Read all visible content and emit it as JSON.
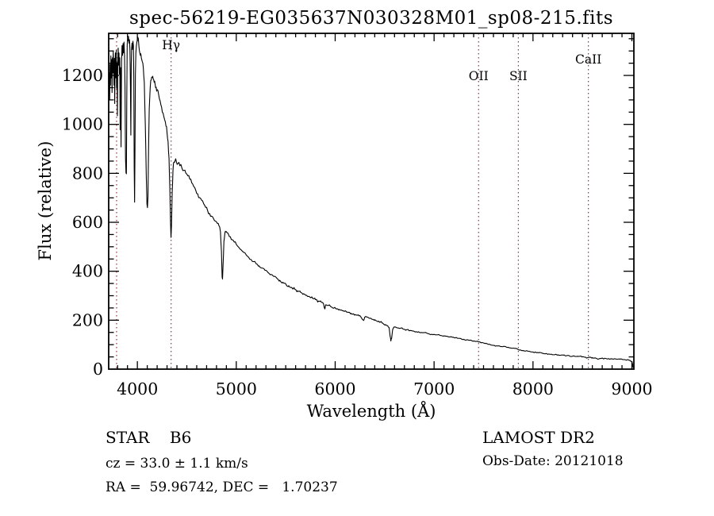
{
  "page": {
    "background": "#ffffff",
    "text_color": "#000000"
  },
  "chart_data": {
    "type": "line",
    "title": "spec-56219-EG035637N030328M01_sp08-215.fits",
    "xlabel": "Wavelength (Å)",
    "ylabel": "Flux (relative)",
    "xlim": [
      3710,
      9020
    ],
    "ylim": [
      0,
      1372
    ],
    "xticks": [
      4000,
      5000,
      6000,
      7000,
      8000,
      9000
    ],
    "xtick_minor_step": 100,
    "yticks": [
      0,
      200,
      400,
      600,
      800,
      1000,
      1200
    ],
    "ytick_minor_step": 50,
    "grid": false,
    "legend": "none",
    "axis_color": "#000000",
    "line_color": "#000000",
    "reference_line_color": "#993333",
    "reference_lines": [
      {
        "label": "",
        "wavelength": 3790,
        "label_row": "none"
      },
      {
        "label": "Hγ",
        "wavelength": 4341,
        "label_row": "high"
      },
      {
        "label": "OII",
        "wavelength": 7450,
        "label_row": "low"
      },
      {
        "label": "SII",
        "wavelength": 7852,
        "label_row": "low"
      },
      {
        "label": "CaII",
        "wavelength": 8560,
        "label_row": "mid"
      }
    ],
    "series": [
      {
        "name": "spectrum",
        "points": [
          [
            3712,
            1140
          ],
          [
            3716,
            1210
          ],
          [
            3720,
            1100
          ],
          [
            3724,
            1245
          ],
          [
            3728,
            1160
          ],
          [
            3732,
            1280
          ],
          [
            3736,
            1190
          ],
          [
            3740,
            1265
          ],
          [
            3744,
            1130
          ],
          [
            3748,
            1272
          ],
          [
            3752,
            1210
          ],
          [
            3756,
            1300
          ],
          [
            3760,
            1235
          ],
          [
            3764,
            1160
          ],
          [
            3768,
            1270
          ],
          [
            3771,
            1085
          ],
          [
            3774,
            1235
          ],
          [
            3778,
            1292
          ],
          [
            3782,
            1190
          ],
          [
            3786,
            1302
          ],
          [
            3790,
            1148
          ],
          [
            3794,
            1252
          ],
          [
            3798,
            1035
          ],
          [
            3802,
            1262
          ],
          [
            3806,
            1312
          ],
          [
            3810,
            1242
          ],
          [
            3814,
            1292
          ],
          [
            3818,
            1205
          ],
          [
            3822,
            1272
          ],
          [
            3826,
            978
          ],
          [
            3830,
            1232
          ],
          [
            3835,
            908
          ],
          [
            3840,
            1252
          ],
          [
            3845,
            1322
          ],
          [
            3850,
            1282
          ],
          [
            3855,
            1330
          ],
          [
            3860,
            1292
          ],
          [
            3865,
            1336
          ],
          [
            3870,
            1282
          ],
          [
            3875,
            1152
          ],
          [
            3880,
            862
          ],
          [
            3885,
            802
          ],
          [
            3889,
            798
          ],
          [
            3893,
            1102
          ],
          [
            3897,
            1322
          ],
          [
            3901,
            1355
          ],
          [
            3905,
            1342
          ],
          [
            3910,
            1360
          ],
          [
            3915,
            1332
          ],
          [
            3920,
            1346
          ],
          [
            3925,
            1302
          ],
          [
            3930,
            1152
          ],
          [
            3934,
            956
          ],
          [
            3938,
            1242
          ],
          [
            3942,
            1312
          ],
          [
            3946,
            1332
          ],
          [
            3950,
            1306
          ],
          [
            3955,
            1340
          ],
          [
            3960,
            1322
          ],
          [
            3964,
            1182
          ],
          [
            3968,
            822
          ],
          [
            3972,
            682
          ],
          [
            3976,
            902
          ],
          [
            3980,
            1202
          ],
          [
            3985,
            1292
          ],
          [
            3990,
            1322
          ],
          [
            3995,
            1336
          ],
          [
            4000,
            1346
          ],
          [
            4005,
            1356
          ],
          [
            4010,
            1350
          ],
          [
            4015,
            1322
          ],
          [
            4020,
            1302
          ],
          [
            4030,
            1282
          ],
          [
            4040,
            1272
          ],
          [
            4050,
            1256
          ],
          [
            4060,
            1232
          ],
          [
            4070,
            1172
          ],
          [
            4080,
            1002
          ],
          [
            4090,
            792
          ],
          [
            4097,
            674
          ],
          [
            4102,
            660
          ],
          [
            4107,
            702
          ],
          [
            4112,
            862
          ],
          [
            4120,
            1062
          ],
          [
            4130,
            1152
          ],
          [
            4140,
            1182
          ],
          [
            4150,
            1192
          ],
          [
            4160,
            1186
          ],
          [
            4170,
            1172
          ],
          [
            4180,
            1162
          ],
          [
            4190,
            1152
          ],
          [
            4200,
            1142
          ],
          [
            4215,
            1122
          ],
          [
            4230,
            1096
          ],
          [
            4245,
            1070
          ],
          [
            4260,
            1046
          ],
          [
            4275,
            1020
          ],
          [
            4290,
            992
          ],
          [
            4300,
            966
          ],
          [
            4310,
            932
          ],
          [
            4320,
            862
          ],
          [
            4328,
            742
          ],
          [
            4335,
            602
          ],
          [
            4340,
            538
          ],
          [
            4345,
            586
          ],
          [
            4352,
            722
          ],
          [
            4360,
            812
          ],
          [
            4370,
            846
          ],
          [
            4380,
            850
          ],
          [
            4395,
            846
          ],
          [
            4410,
            840
          ],
          [
            4430,
            831
          ],
          [
            4450,
            822
          ],
          [
            4470,
            812
          ],
          [
            4490,
            801
          ],
          [
            4510,
            790
          ],
          [
            4530,
            776
          ],
          [
            4550,
            761
          ],
          [
            4570,
            746
          ],
          [
            4590,
            731
          ],
          [
            4610,
            716
          ],
          [
            4630,
            701
          ],
          [
            4650,
            690
          ],
          [
            4670,
            676
          ],
          [
            4690,
            661
          ],
          [
            4710,
            648
          ],
          [
            4730,
            636
          ],
          [
            4750,
            625
          ],
          [
            4770,
            615
          ],
          [
            4790,
            605
          ],
          [
            4810,
            595
          ],
          [
            4825,
            586
          ],
          [
            4840,
            561
          ],
          [
            4850,
            481
          ],
          [
            4857,
            376
          ],
          [
            4861,
            368
          ],
          [
            4866,
            421
          ],
          [
            4875,
            521
          ],
          [
            4885,
            556
          ],
          [
            4895,
            561
          ],
          [
            4905,
            558
          ],
          [
            4920,
            552
          ],
          [
            4940,
            541
          ],
          [
            4960,
            529
          ],
          [
            4980,
            519
          ],
          [
            5000,
            510
          ],
          [
            5025,
            498
          ],
          [
            5050,
            487
          ],
          [
            5075,
            477
          ],
          [
            5100,
            467
          ],
          [
            5125,
            457
          ],
          [
            5150,
            448
          ],
          [
            5175,
            439
          ],
          [
            5200,
            431
          ],
          [
            5230,
            422
          ],
          [
            5260,
            413
          ],
          [
            5290,
            404
          ],
          [
            5320,
            395
          ],
          [
            5350,
            387
          ],
          [
            5380,
            379
          ],
          [
            5410,
            371
          ],
          [
            5440,
            363
          ],
          [
            5470,
            355
          ],
          [
            5500,
            348
          ],
          [
            5530,
            341
          ],
          [
            5560,
            334
          ],
          [
            5590,
            327
          ],
          [
            5620,
            320
          ],
          [
            5650,
            314
          ],
          [
            5680,
            308
          ],
          [
            5710,
            302
          ],
          [
            5740,
            296
          ],
          [
            5770,
            290
          ],
          [
            5800,
            284
          ],
          [
            5830,
            278
          ],
          [
            5860,
            273
          ],
          [
            5880,
            269
          ],
          [
            5890,
            251
          ],
          [
            5896,
            246
          ],
          [
            5905,
            263
          ],
          [
            5930,
            260
          ],
          [
            5960,
            255
          ],
          [
            6000,
            250
          ],
          [
            6040,
            244
          ],
          [
            6080,
            239
          ],
          [
            6120,
            233
          ],
          [
            6160,
            228
          ],
          [
            6200,
            223
          ],
          [
            6240,
            218
          ],
          [
            6262,
            212
          ],
          [
            6276,
            203
          ],
          [
            6288,
            199
          ],
          [
            6298,
            212
          ],
          [
            6320,
            213
          ],
          [
            6360,
            208
          ],
          [
            6400,
            202
          ],
          [
            6440,
            196
          ],
          [
            6480,
            188
          ],
          [
            6510,
            182
          ],
          [
            6530,
            178
          ],
          [
            6545,
            170
          ],
          [
            6555,
            135
          ],
          [
            6563,
            115
          ],
          [
            6571,
            126
          ],
          [
            6581,
            161
          ],
          [
            6595,
            172
          ],
          [
            6640,
            168
          ],
          [
            6700,
            163
          ],
          [
            6760,
            158
          ],
          [
            6820,
            153
          ],
          [
            6880,
            149
          ],
          [
            6940,
            145
          ],
          [
            7000,
            142
          ],
          [
            7100,
            136
          ],
          [
            7200,
            129
          ],
          [
            7300,
            122
          ],
          [
            7400,
            115
          ],
          [
            7450,
            111
          ],
          [
            7500,
            107
          ],
          [
            7560,
            102
          ],
          [
            7600,
            97
          ],
          [
            7620,
            94
          ],
          [
            7660,
            95
          ],
          [
            7700,
            93
          ],
          [
            7750,
            89
          ],
          [
            7800,
            86
          ],
          [
            7850,
            80
          ],
          [
            7900,
            76
          ],
          [
            7950,
            73
          ],
          [
            8000,
            70
          ],
          [
            8060,
            67
          ],
          [
            8100,
            65
          ],
          [
            8160,
            62
          ],
          [
            8220,
            59
          ],
          [
            8280,
            57
          ],
          [
            8340,
            55
          ],
          [
            8400,
            53
          ],
          [
            8460,
            52
          ],
          [
            8500,
            51
          ],
          [
            8520,
            49
          ],
          [
            8542,
            45
          ],
          [
            8560,
            48
          ],
          [
            8600,
            47
          ],
          [
            8630,
            46
          ],
          [
            8662,
            41
          ],
          [
            8690,
            44
          ],
          [
            8740,
            43
          ],
          [
            8800,
            42
          ],
          [
            8860,
            41
          ],
          [
            8920,
            39
          ],
          [
            8950,
            38
          ],
          [
            8980,
            36
          ],
          [
            9000,
            31
          ],
          [
            9006,
            22
          ],
          [
            9012,
            6
          ]
        ]
      }
    ],
    "noise_model": [
      {
        "max_wavelength": 4020,
        "amplitude": 22
      },
      {
        "max_wavelength": 4450,
        "amplitude": 12
      },
      {
        "max_wavelength": 5000,
        "amplitude": 8
      },
      {
        "max_wavelength": 6000,
        "amplitude": 5.5
      },
      {
        "max_wavelength": 7000,
        "amplitude": 3.5
      },
      {
        "max_wavelength": 9020,
        "amplitude": 2.2
      }
    ]
  },
  "annotations": {
    "object_class": "STAR    B6",
    "cz": "cz = 33.0 ± 1.1 km/s",
    "radec": "RA =  59.96742, DEC =   1.70237",
    "survey": "LAMOST DR2",
    "obs_date": "Obs-Date: 20121018"
  }
}
